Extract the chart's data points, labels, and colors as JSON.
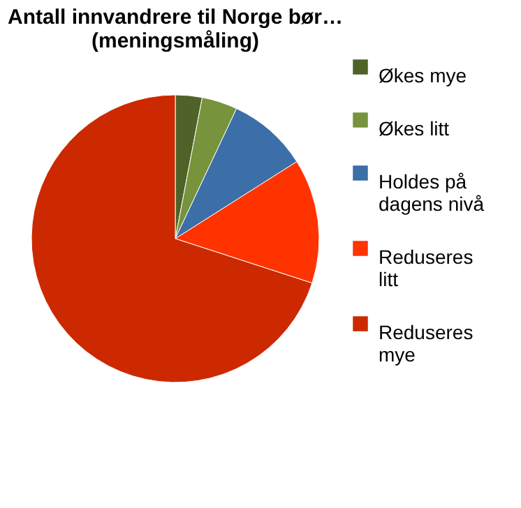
{
  "chart_data": {
    "type": "pie",
    "title": [
      "Antall innvandrere til Norge bør…",
      "(meningsmåling)"
    ],
    "categories": [
      "Økes mye",
      "Økes litt",
      "Holdes på dagens nivå",
      "Reduseres litt",
      "Reduseres mye"
    ],
    "values": [
      3,
      4,
      9,
      14,
      70
    ],
    "colors": [
      "#4f6228",
      "#77933c",
      "#3c6ea8",
      "#ff3300",
      "#cc2900"
    ],
    "legend": "right"
  }
}
